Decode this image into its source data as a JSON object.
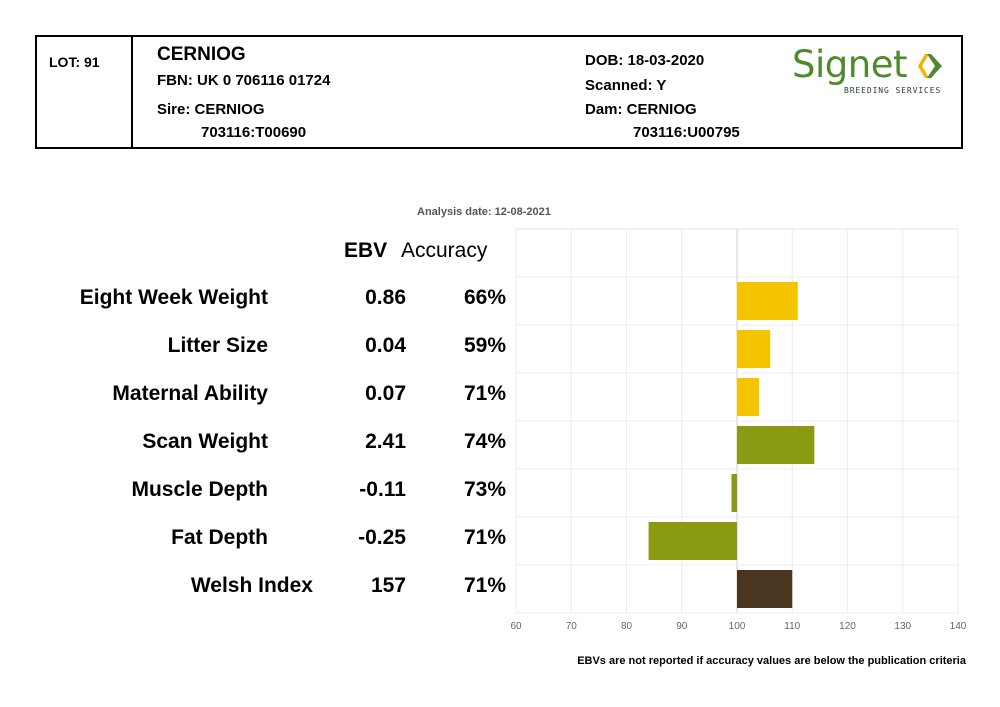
{
  "header": {
    "lot": "LOT: 91",
    "name": "CERNIOG",
    "fbn": "FBN: UK 0 706116 01724",
    "sire": "Sire: CERNIOG",
    "sire_id": "703116:T00690",
    "dob": "DOB: 18-03-2020",
    "scanned": "Scanned: Y",
    "dam": "Dam: CERNIOG",
    "dam_id": "703116:U00795",
    "logo_text": "Signet",
    "logo_subtext": "BREEDING SERVICES"
  },
  "analysis_date": "Analysis date: 12-08-2021",
  "table_headers": {
    "ebv": "EBV",
    "accuracy": "Accuracy"
  },
  "footnote": "EBVs are not reported if accuracy values are below the publication criteria",
  "colors": {
    "yellow": "#f5c400",
    "green": "#8a9a12",
    "brown": "#4a3520",
    "logo_green": "#4f8a2c"
  },
  "chart_data": {
    "type": "bar",
    "orientation": "horizontal",
    "baseline": 100,
    "xlim": [
      60,
      140
    ],
    "xticks": [
      "60",
      "70",
      "80",
      "90",
      "100",
      "110",
      "120",
      "130",
      "140"
    ],
    "grid": true,
    "categories": [
      "Eight Week Weight",
      "Litter Size",
      "Maternal Ability",
      "Scan Weight",
      "Muscle Depth",
      "Fat Depth",
      "Welsh Index"
    ],
    "ebv": [
      "0.86",
      "0.04",
      "0.07",
      "2.41",
      "-0.11",
      "-0.25",
      "157"
    ],
    "accuracy": [
      "66%",
      "59%",
      "71%",
      "74%",
      "73%",
      "71%",
      "71%"
    ],
    "values": [
      111,
      106,
      104,
      114,
      99,
      84,
      110
    ],
    "bar_colors": [
      "yellow",
      "yellow",
      "yellow",
      "green",
      "green",
      "green",
      "brown"
    ]
  }
}
